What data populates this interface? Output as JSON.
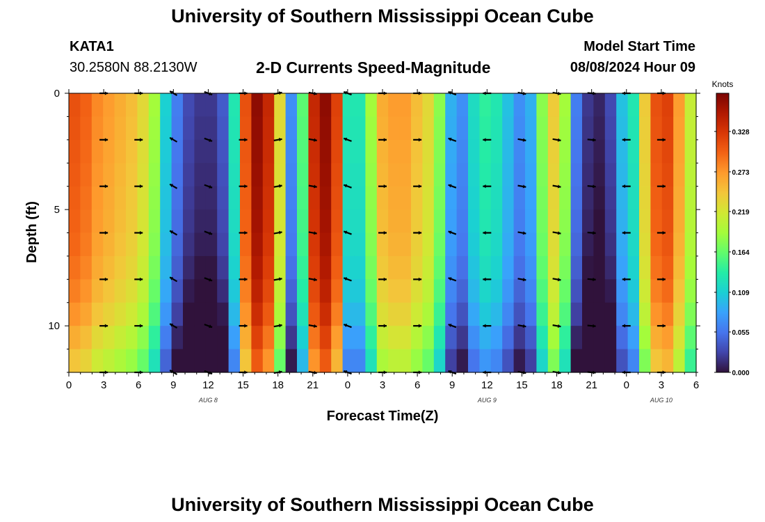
{
  "header": {
    "title": "University of Southern Mississippi Ocean Cube",
    "station": "KATA1",
    "coords": "30.2580N  88.2130W",
    "subtitle": "2-D Currents Speed-Magnitude",
    "model_label": "Model Start Time",
    "model_time": "08/08/2024 Hour 09"
  },
  "footer": {
    "title": "University of Southern Mississippi Ocean Cube"
  },
  "colors": {
    "scale": [
      "#30123b",
      "#4145ab",
      "#4675ed",
      "#39a2fc",
      "#1bcfd4",
      "#24eca6",
      "#61fc6c",
      "#a4fc3b",
      "#d1e834",
      "#f3c63a",
      "#fe9b2d",
      "#f36315",
      "#d93806",
      "#b11901",
      "#7a0402"
    ]
  },
  "chart_data": {
    "type": "heatmap",
    "xlabel": "Forecast Time(Z)",
    "ylabel": "Depth (ft)",
    "colorbar_label": "Knots",
    "colorbar_ticks": [
      "0.328",
      "0.273",
      "0.219",
      "0.164",
      "0.109",
      "0.055",
      "0.000"
    ],
    "colorbar_range": [
      0,
      0.38
    ],
    "x_range": [
      0,
      54
    ],
    "x_tick_values": [
      0,
      3,
      6,
      9,
      12,
      15,
      18,
      21,
      24,
      27,
      30,
      33,
      36,
      39,
      42,
      45,
      48,
      51,
      54
    ],
    "x_tick_labels": [
      "0",
      "3",
      "6",
      "9",
      "12",
      "15",
      "18",
      "21",
      "0",
      "3",
      "6",
      "9",
      "12",
      "15",
      "18",
      "21",
      "0",
      "3",
      "6"
    ],
    "y_range": [
      0,
      12
    ],
    "y_tick_values": [
      0,
      5,
      10
    ],
    "y_tick_labels": [
      "0",
      "5",
      "10"
    ],
    "date_labels": [
      {
        "text": "AUG 8",
        "x": 12
      },
      {
        "text": "AUG 9",
        "x": 36
      },
      {
        "text": "AUG 10",
        "x": 51
      }
    ],
    "speed_by_hour": [
      0.3,
      0.29,
      0.27,
      0.26,
      0.25,
      0.24,
      0.22,
      0.18,
      0.1,
      0.05,
      0.02,
      0.01,
      0.01,
      0.03,
      0.12,
      0.3,
      0.36,
      0.33,
      0.22,
      0.06,
      0.15,
      0.33,
      0.36,
      0.31,
      0.12,
      0.12,
      0.18,
      0.25,
      0.26,
      0.26,
      0.24,
      0.22,
      0.17,
      0.08,
      0.06,
      0.11,
      0.13,
      0.12,
      0.09,
      0.06,
      0.08,
      0.17,
      0.23,
      0.18,
      0.05,
      0.01,
      0.0,
      0.02,
      0.09,
      0.12,
      0.23,
      0.3,
      0.31,
      0.26,
      0.2
    ],
    "depth_modifier": [
      0.01,
      0.008,
      0.006,
      0.004,
      0.002,
      0.0,
      -0.003,
      -0.008,
      -0.015,
      -0.025,
      -0.04,
      -0.055
    ],
    "vector_hours": [
      3,
      6,
      9,
      12,
      15,
      18,
      21,
      24,
      27,
      30,
      33,
      36,
      39,
      42,
      45,
      48,
      51
    ],
    "vector_depths": [
      0,
      2,
      4,
      6,
      8,
      10,
      12
    ],
    "vector_dirs_deg": [
      0,
      0,
      210,
      20,
      0,
      350,
      10,
      200,
      0,
      0,
      200,
      180,
      10,
      10,
      5,
      180,
      0
    ]
  }
}
